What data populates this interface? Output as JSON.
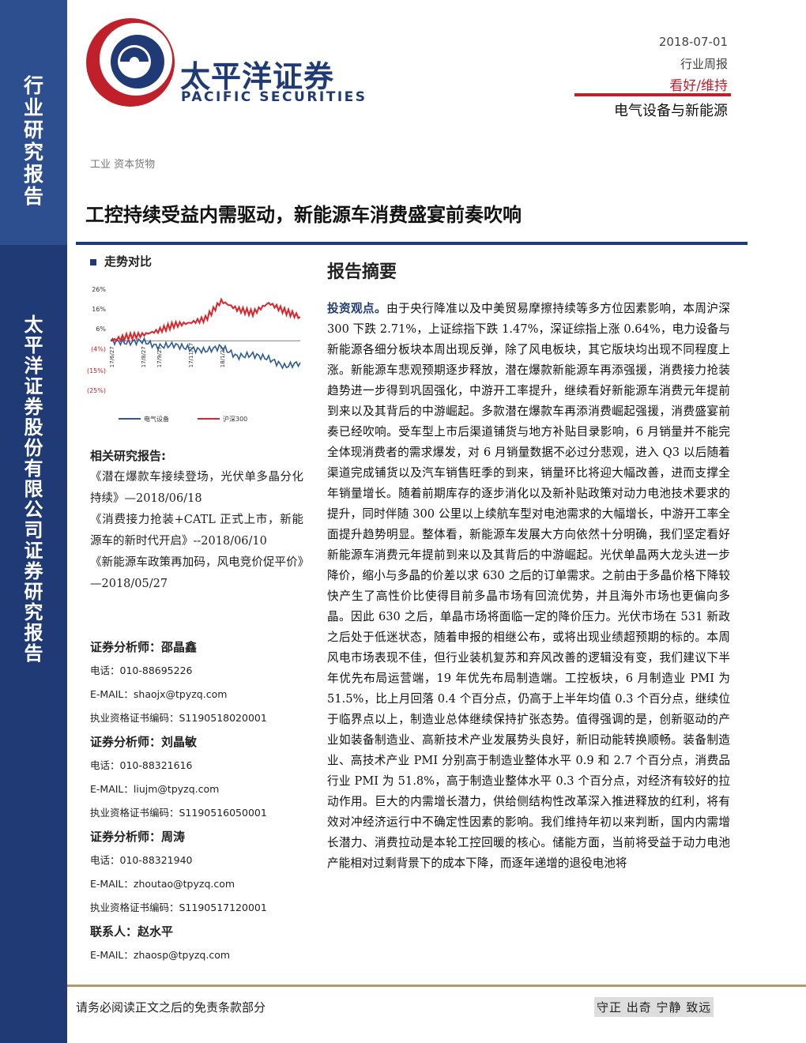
{
  "sidebar": {
    "top_label": "行业研究报告",
    "company_label": "太平洋证券股份有限公司证券研究报告"
  },
  "brand": {
    "name_cn": "太平洋证券",
    "name_en": "PACIFIC SECURITIES",
    "colors": {
      "navy": "#1f3a74",
      "red": "#c0202a"
    }
  },
  "header": {
    "date": "2018-07-01",
    "report_type": "行业周报",
    "rating": "看好/维持",
    "sector": "电气设备与新能源"
  },
  "breadcrumb": "工业  资本货物",
  "title": "工控持续受益内需驱动，新能源车消费盛宴前奏吹响",
  "trend": {
    "heading": "走势对比"
  },
  "chart_data": {
    "type": "line",
    "x": [
      "17/6/27",
      "17/7/27",
      "17/8/27",
      "17/9/27",
      "17/10/27",
      "17/11/27",
      "17/12/27",
      "18/1/27",
      "18/2/27",
      "18/3/27",
      "18/4/27",
      "18/5/27",
      "18/6/27"
    ],
    "x_tick_labels": [
      "17/6/27",
      "17/8/27",
      "17/9/27",
      "17/11/27",
      "18/1/27"
    ],
    "y_tick_labels": [
      "26%",
      "16%",
      "6%",
      "(4%)",
      "(15%)",
      "(25%)"
    ],
    "ylim": [
      -25,
      26
    ],
    "series": [
      {
        "name": "电气设备",
        "color": "#2e5a96",
        "values": [
          0,
          -1,
          0,
          -3,
          -2,
          -4,
          -5,
          -3,
          -8,
          -7,
          -9,
          -13,
          -11
        ]
      },
      {
        "name": "沪深300",
        "color": "#d9262c",
        "values": [
          0,
          2,
          3,
          5,
          8,
          9,
          11,
          20,
          16,
          14,
          19,
          15,
          12
        ]
      }
    ],
    "legend_position": "bottom"
  },
  "related": {
    "heading": "相关研究报告:",
    "items": [
      "《潜在爆款车接续登场，光伏单多晶分化持续》—2018/06/18",
      "《消费接力抢装+CATL 正式上市，新能源车的新时代开启》--2018/06/10",
      "《新能源车政策再加码，风电竞价促平价》—2018/05/27"
    ]
  },
  "analysts": [
    {
      "heading": "证券分析师：邵晶鑫",
      "phone": "电话：010-88695226",
      "email": "E-MAIL：shaojx@tpyzq.com",
      "cert": "执业资格证书编码：S1190518020001"
    },
    {
      "heading": "证券分析师：刘晶敏",
      "phone": "电话：010-88321616",
      "email": "E-MAIL：liujm@tpyzq.com",
      "cert": "执业资格证书编码：S1190516050001"
    },
    {
      "heading": "证券分析师：周涛",
      "phone": "电话：010-88321940",
      "email": "E-MAIL：zhoutao@tpyzq.com",
      "cert": "执业资格证书编码：S1190517120001"
    }
  ],
  "contact": {
    "heading": "联系人：赵水平",
    "email": "E-MAIL：zhaosp@tpyzq.com"
  },
  "summary": {
    "heading": "报告摘要",
    "lead": "投资观点。",
    "body": "由于央行降准以及中美贸易摩擦持续等多方位因素影响，本周沪深 300 下跌 2.71%，上证综指下跌 1.47%，深证综指上涨 0.64%，电力设备与新能源各细分板块本周出现反弹，除了风电板块，其它版块均出现不同程度上涨。新能源车悲观预期逐步释放，潜在爆款新能源车再添强援，消费接力抢装趋势进一步得到巩固强化，中游开工率提升，继续看好新能源车消费元年提前到来以及其背后的中游崛起。多款潜在爆款车再添消费崛起强援，消费盛宴前奏已经吹响。受车型上市后渠道铺货与地方补贴目录影响，6 月销量并不能完全体现消费者的需求爆发，对 6 月销量数据不必过分悲观，进入 Q3 以后随着渠道完成铺货以及汽车销售旺季的到来，销量环比将迎大幅改善，进而支撑全年销量增长。随着前期库存的逐步消化以及新补贴政策对动力电池技术要求的提升，同时伴随 300 公里以上续航车型对电池需求的大幅增长，中游开工率全面提升趋势明显。整体看，新能源车发展大方向依然十分明确，我们坚定看好新能源车消费元年提前到来以及其背后的中游崛起。光伏单晶两大龙头进一步降价，缩小与多晶的价差以求 630 之后的订单需求。之前由于多晶价格下降较快产生了高性价比使得目前多晶市场有回流优势，并且海外市场也更偏向多晶。因此 630 之后，单晶市场将面临一定的降价压力。光伏市场在 531 新政之后处于低迷状态，随着申报的相继公布，或将出现业绩超预期的标的。本周风电市场表现不佳，但行业装机复苏和弃风改善的逻辑没有变，我们建议下半年优先布局运营端，19 年优先布局制造端。工控板块，6 月制造业 PMI 为 51.5%，比上月回落 0.4 个百分点，仍高于上半年均值 0.3 个百分点，继续位于临界点以上，制造业总体继续保持扩张态势。值得强调的是，创新驱动的产业如装备制造业、高新技术产业发展势头良好，新旧动能转换顺畅。装备制造业、高技术产业 PMI 分别高于制造业整体水平 0.9 和 2.7 个百分点，消费品行业 PMI 为 51.8%，高于制造业整体水平 0.3 个百分点，对经济有较好的拉动作用。巨大的内需增长潜力，供给侧结构性改革深入推进释放的红利，将有效对冲经济运行中不确定性因素的影响。我们维持年初以来判断，国内内需增长潜力、消费拉动是本轮工控回暖的核心。储能方面，当前将受益于动力电池产能相对过剩背景下的成本下降，而逐年递增的退役电池将"
  },
  "footer": {
    "disclaimer": "请务必阅读正文之后的免责条款部分",
    "motto": "守正 出奇 宁静 致远"
  }
}
